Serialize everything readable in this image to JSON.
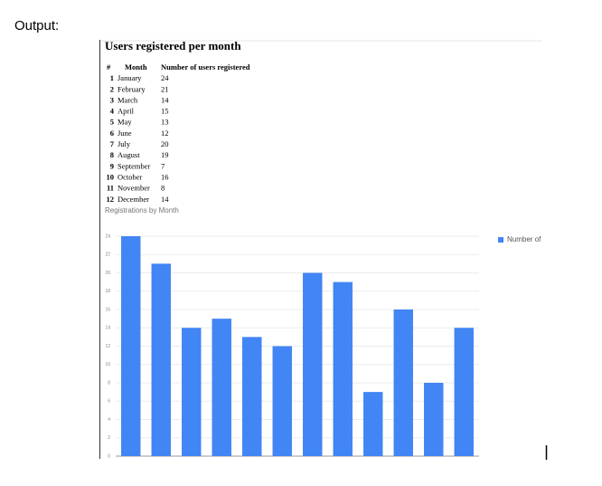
{
  "label": "Output:",
  "header": {
    "title": "Users registered per month"
  },
  "table": {
    "columns": [
      "#",
      "Month",
      "Number of users registered"
    ],
    "rows": [
      [
        1,
        "January",
        24
      ],
      [
        2,
        "February",
        21
      ],
      [
        3,
        "March",
        14
      ],
      [
        4,
        "April",
        15
      ],
      [
        5,
        "May",
        13
      ],
      [
        6,
        "June",
        12
      ],
      [
        7,
        "July",
        20
      ],
      [
        8,
        "August",
        19
      ],
      [
        9,
        "September",
        7
      ],
      [
        10,
        "October",
        16
      ],
      [
        11,
        "November",
        8
      ],
      [
        12,
        "December",
        14
      ]
    ]
  },
  "chart_data": {
    "type": "bar",
    "title": "Registrations by Month",
    "categories": [
      null,
      null,
      null,
      null,
      null,
      null,
      null,
      null,
      null,
      null,
      null,
      null
    ],
    "series": [
      {
        "name": "Number of",
        "color": "#4285f4",
        "values": [
          24,
          21,
          14,
          15,
          13,
          12,
          20,
          19,
          7,
          16,
          8,
          14
        ]
      }
    ],
    "ylim": [
      0,
      24
    ],
    "yticks": [
      0,
      2,
      4,
      6,
      8,
      10,
      12,
      14,
      16,
      18,
      20,
      22,
      24
    ],
    "grid": true,
    "legend": "right"
  }
}
